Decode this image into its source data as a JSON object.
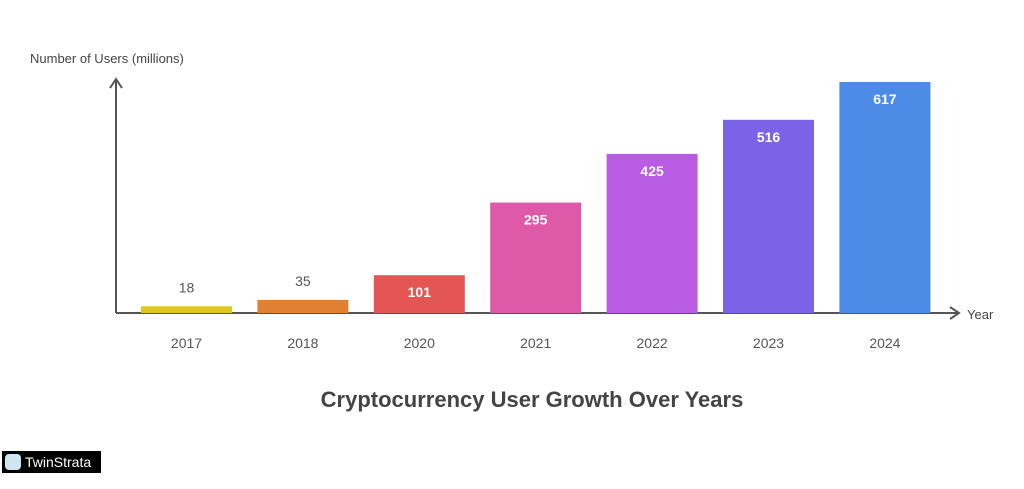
{
  "chart_data": {
    "type": "bar",
    "title": "Cryptocurrency User Growth Over Years",
    "xlabel": "Year",
    "ylabel": "Number of Users (millions)",
    "categories": [
      "2017",
      "2018",
      "2020",
      "2021",
      "2022",
      "2023",
      "2024"
    ],
    "values": [
      18,
      35,
      101,
      295,
      425,
      516,
      617
    ],
    "colors": [
      "#e0c71c",
      "#e08030",
      "#e35654",
      "#de5aa8",
      "#b85ce3",
      "#7b63e8",
      "#4c8be6"
    ],
    "ylim": [
      0,
      617
    ],
    "grid": false
  },
  "logo_text": "TwinStrata"
}
